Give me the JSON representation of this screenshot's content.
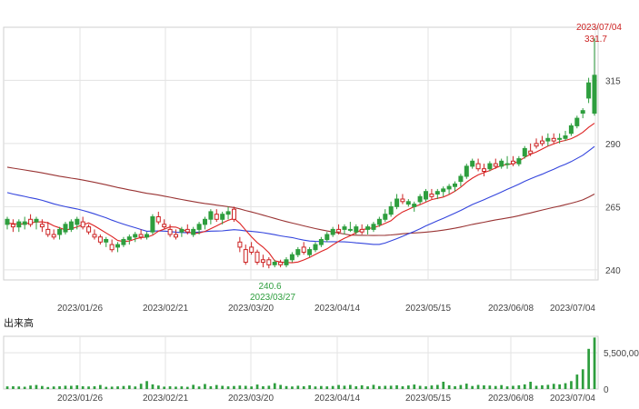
{
  "chart_data": [
    {
      "type": "candlestick",
      "x_ticks": [
        "2023/01/26",
        "2023/02/21",
        "2023/03/20",
        "2023/04/14",
        "2023/05/15",
        "2023/06/08",
        "2023/07/04"
      ],
      "y_ticks": [
        240,
        265,
        290,
        315
      ],
      "ylim": [
        236,
        336
      ],
      "grid": true,
      "high_annotation": {
        "date": "2023/07/04",
        "value": "331.7"
      },
      "low_annotation": {
        "date": "2023/03/27",
        "value": "240.6"
      },
      "colors": {
        "up": "#2e9e3e",
        "down": "#cc2222",
        "ma_short": "#dd2222",
        "ma_mid": "#3344dd",
        "ma_long": "#993333"
      },
      "ohlc": [
        [
          258,
          261,
          256,
          260
        ],
        [
          258,
          260,
          255,
          257
        ],
        [
          257,
          260,
          255,
          259
        ],
        [
          258,
          261,
          256,
          259
        ],
        [
          260,
          262,
          257,
          258
        ],
        [
          259,
          261,
          256,
          260
        ],
        [
          258,
          260,
          255,
          257
        ],
        [
          256,
          259,
          253,
          254
        ],
        [
          254,
          256,
          252,
          253
        ],
        [
          254,
          257,
          252,
          256
        ],
        [
          255,
          259,
          254,
          258
        ],
        [
          256,
          260,
          255,
          259
        ],
        [
          258,
          261,
          256,
          260
        ],
        [
          259,
          261,
          256,
          257
        ],
        [
          257,
          258,
          254,
          255
        ],
        [
          254,
          256,
          252,
          253
        ],
        [
          253,
          254,
          250,
          251
        ],
        [
          251,
          253,
          249,
          252
        ],
        [
          250,
          252,
          247,
          248
        ],
        [
          249,
          251,
          247,
          250
        ],
        [
          250,
          253,
          249,
          252
        ],
        [
          252,
          254,
          250,
          253
        ],
        [
          253,
          255,
          251,
          254
        ],
        [
          254,
          256,
          252,
          253
        ],
        [
          253,
          255,
          252,
          254
        ],
        [
          255,
          262,
          254,
          261
        ],
        [
          261,
          263,
          258,
          259
        ],
        [
          258,
          260,
          256,
          257
        ],
        [
          256,
          258,
          253,
          254
        ],
        [
          254,
          256,
          252,
          253
        ],
        [
          255,
          257,
          253,
          256
        ],
        [
          256,
          258,
          254,
          255
        ],
        [
          254,
          257,
          253,
          256
        ],
        [
          256,
          259,
          254,
          258
        ],
        [
          258,
          261,
          256,
          260
        ],
        [
          260,
          264,
          258,
          263
        ],
        [
          262,
          264,
          259,
          260
        ],
        [
          260,
          263,
          258,
          262
        ],
        [
          262,
          265,
          260,
          263
        ],
        [
          264,
          265,
          259,
          260
        ],
        [
          251,
          253,
          247,
          249
        ],
        [
          248,
          250,
          242,
          243
        ],
        [
          249,
          251,
          246,
          247
        ],
        [
          247,
          248,
          242,
          243
        ],
        [
          244,
          246,
          241,
          243
        ],
        [
          244,
          245,
          240.6,
          242
        ],
        [
          242,
          244,
          241,
          243
        ],
        [
          243,
          244,
          241,
          242
        ],
        [
          242,
          245,
          241,
          244
        ],
        [
          244,
          247,
          243,
          246
        ],
        [
          246,
          249,
          245,
          248
        ],
        [
          249,
          251,
          246,
          247
        ],
        [
          246,
          249,
          245,
          248
        ],
        [
          248,
          251,
          247,
          250
        ],
        [
          250,
          253,
          249,
          252
        ],
        [
          252,
          255,
          251,
          254
        ],
        [
          254,
          257,
          253,
          256
        ],
        [
          256,
          258,
          254,
          255
        ],
        [
          256,
          258,
          254,
          257
        ],
        [
          256,
          259,
          255,
          256
        ],
        [
          255,
          258,
          254,
          257
        ],
        [
          256,
          258,
          254,
          255
        ],
        [
          256,
          258,
          254,
          257
        ],
        [
          256,
          259,
          255,
          258
        ],
        [
          258,
          261,
          257,
          260
        ],
        [
          260,
          264,
          259,
          262
        ],
        [
          262,
          267,
          261,
          265
        ],
        [
          265,
          270,
          264,
          268
        ],
        [
          268,
          270,
          266,
          267
        ],
        [
          266,
          268,
          265,
          267
        ],
        [
          265,
          267,
          263,
          266
        ],
        [
          267,
          270,
          266,
          269
        ],
        [
          268,
          272,
          267,
          271
        ],
        [
          270,
          272,
          268,
          269
        ],
        [
          270,
          272,
          268,
          271
        ],
        [
          271,
          273,
          269,
          272
        ],
        [
          272,
          274,
          270,
          273
        ],
        [
          273,
          275,
          271,
          274
        ],
        [
          275,
          278,
          273,
          277
        ],
        [
          277,
          282,
          276,
          281
        ],
        [
          281,
          284,
          280,
          283
        ],
        [
          282,
          284,
          279,
          280
        ],
        [
          280,
          282,
          277,
          279
        ],
        [
          280,
          283,
          279,
          282
        ],
        [
          282,
          284,
          280,
          281
        ],
        [
          281,
          284,
          280,
          283
        ],
        [
          282,
          285,
          280,
          282
        ],
        [
          283,
          285,
          281,
          282
        ],
        [
          282,
          285,
          281,
          284
        ],
        [
          285,
          289,
          284,
          288
        ],
        [
          287,
          290,
          285,
          286
        ],
        [
          290,
          292,
          288,
          289
        ],
        [
          291,
          293,
          289,
          290
        ],
        [
          291,
          294,
          289,
          292
        ],
        [
          292,
          294,
          290,
          291
        ],
        [
          292,
          294,
          290,
          292
        ],
        [
          292,
          295,
          291,
          293
        ],
        [
          294,
          298,
          293,
          297
        ],
        [
          297,
          301,
          296,
          300
        ],
        [
          302,
          304,
          300,
          303
        ],
        [
          308,
          316,
          306,
          314
        ],
        [
          302,
          331.7,
          301,
          317
        ]
      ],
      "ma_short": [
        258.5,
        258.3,
        258.1,
        258.2,
        258.6,
        258.9,
        259.0,
        258.6,
        257.4,
        256.6,
        255.8,
        256.2,
        257.0,
        257.8,
        258.6,
        257.4,
        256.0,
        254.6,
        253.2,
        251.6,
        251.2,
        251.4,
        252.2,
        252.8,
        252.9,
        253.7,
        255.3,
        256.1,
        257.0,
        256.9,
        256.0,
        255.1,
        254.3,
        254.6,
        255.2,
        256.3,
        257.4,
        258.6,
        259.6,
        260.4,
        258.4,
        255.7,
        253.1,
        250.8,
        249.0,
        246.8,
        243.6,
        243.1,
        242.9,
        242.8,
        243.1,
        243.9,
        244.9,
        246.1,
        247.3,
        248.3,
        249.9,
        251.3,
        252.5,
        253.5,
        254.7,
        255.9,
        256.3,
        256.7,
        257.4,
        258.4,
        259.4,
        261.4,
        262.9,
        263.9,
        265.0,
        265.8,
        266.8,
        267.8,
        268.3,
        268.8,
        269.8,
        271.1,
        272.7,
        274.7,
        276.3,
        277.6,
        278.5,
        279.3,
        280.3,
        281.3,
        281.7,
        282.0,
        283.0,
        284.5,
        285.7,
        286.6,
        287.8,
        289.0,
        289.8,
        290.7,
        291.2,
        291.9,
        293.0,
        294.4,
        296.4,
        298.0
      ]
    },
    {
      "type": "bar",
      "title": "出来高",
      "y_tick_labels": [
        "0",
        "5,500,00"
      ],
      "ylim": [
        0,
        8000000
      ],
      "values": [
        400000,
        420000,
        380000,
        350000,
        520000,
        600000,
        450000,
        300000,
        380000,
        420000,
        500000,
        480000,
        560000,
        420000,
        390000,
        410000,
        600000,
        330000,
        360000,
        400000,
        460000,
        520000,
        390000,
        800000,
        1200000,
        700000,
        520000,
        360000,
        420000,
        360000,
        400000,
        330000,
        640000,
        390000,
        760000,
        420000,
        610000,
        480000,
        400000,
        460000,
        530000,
        480000,
        380000,
        680000,
        420000,
        500000,
        880000,
        620000,
        440000,
        380000,
        500000,
        420000,
        560000,
        390000,
        450000,
        400000,
        460000,
        610000,
        500000,
        620000,
        420000,
        560000,
        400000,
        630000,
        440000,
        480000,
        500000,
        560000,
        420000,
        540000,
        680000,
        480000,
        400000,
        540000,
        620000,
        1100000,
        560000,
        430000,
        610000,
        820000,
        450000,
        620000,
        550000,
        520000,
        460000,
        590000,
        400000,
        480000,
        560000,
        700000,
        1100000,
        480000,
        560000,
        640000,
        780000,
        700000,
        880000,
        1200000,
        2200000,
        3000000,
        6100000,
        7800000
      ]
    }
  ]
}
